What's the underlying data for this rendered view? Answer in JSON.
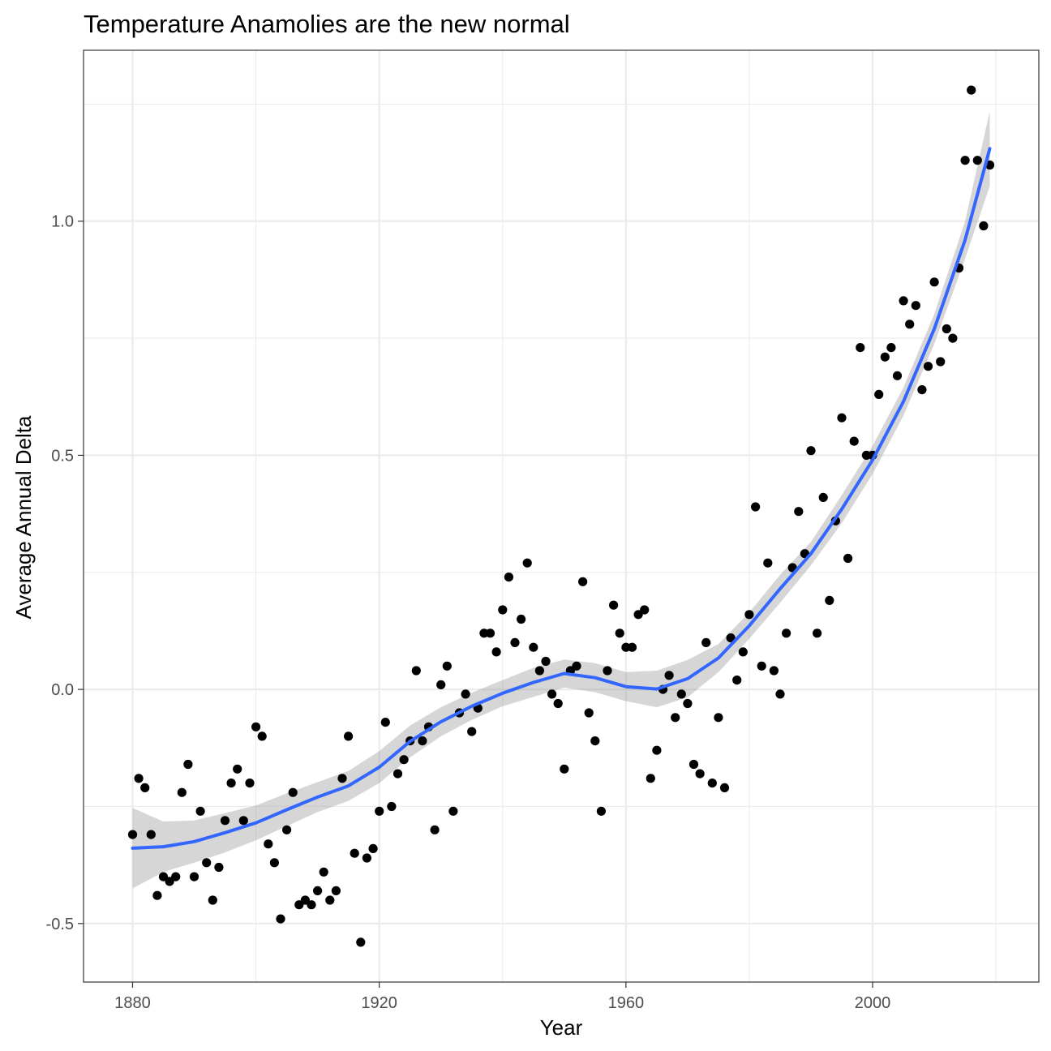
{
  "chart_data": {
    "type": "scatter",
    "title": "Temperature Anamolies are the new normal",
    "xlabel": "Year",
    "ylabel": "Average Annual Delta",
    "xlim": [
      1872.05,
      2026.95
    ],
    "ylim": [
      -0.625,
      1.365
    ],
    "x_ticks": [
      1880,
      1920,
      1960,
      2000
    ],
    "x_tick_labels": [
      "1880",
      "1920",
      "1960",
      "2000"
    ],
    "x_minor_ticks": [
      1900,
      1940,
      1980,
      2020
    ],
    "y_ticks": [
      -0.5,
      0.0,
      0.5,
      1.0
    ],
    "y_tick_labels": [
      "-0.5",
      "0.0",
      "0.5",
      "1.0"
    ],
    "y_minor_ticks": [
      -0.25,
      0.25,
      0.75,
      1.25
    ],
    "grid": true,
    "legend": "none",
    "colors": {
      "points": "#000000",
      "smooth_line": "#3366FF",
      "ribbon": "#999999"
    },
    "x": [
      1880,
      1881,
      1882,
      1883,
      1884,
      1885,
      1886,
      1887,
      1888,
      1889,
      1890,
      1891,
      1892,
      1893,
      1894,
      1895,
      1896,
      1897,
      1898,
      1899,
      1900,
      1901,
      1902,
      1903,
      1904,
      1905,
      1906,
      1907,
      1908,
      1909,
      1910,
      1911,
      1912,
      1913,
      1914,
      1915,
      1916,
      1917,
      1918,
      1919,
      1920,
      1921,
      1922,
      1923,
      1924,
      1925,
      1926,
      1927,
      1928,
      1929,
      1930,
      1931,
      1932,
      1933,
      1934,
      1935,
      1936,
      1937,
      1938,
      1939,
      1940,
      1941,
      1942,
      1943,
      1944,
      1945,
      1946,
      1947,
      1948,
      1949,
      1950,
      1951,
      1952,
      1953,
      1954,
      1955,
      1956,
      1957,
      1958,
      1959,
      1960,
      1961,
      1962,
      1963,
      1964,
      1965,
      1966,
      1967,
      1968,
      1969,
      1970,
      1971,
      1972,
      1973,
      1974,
      1975,
      1976,
      1977,
      1978,
      1979,
      1980,
      1981,
      1982,
      1983,
      1984,
      1985,
      1986,
      1987,
      1988,
      1989,
      1990,
      1991,
      1992,
      1993,
      1994,
      1995,
      1996,
      1997,
      1998,
      1999,
      2000,
      2001,
      2002,
      2003,
      2004,
      2005,
      2006,
      2007,
      2008,
      2009,
      2010,
      2011,
      2012,
      2013,
      2014,
      2015,
      2016,
      2017,
      2018,
      2019
    ],
    "y": [
      -0.31,
      -0.19,
      -0.21,
      -0.31,
      -0.44,
      -0.4,
      -0.41,
      -0.4,
      -0.22,
      -0.16,
      -0.4,
      -0.26,
      -0.37,
      -0.45,
      -0.38,
      -0.28,
      -0.2,
      -0.17,
      -0.28,
      -0.2,
      -0.08,
      -0.1,
      -0.33,
      -0.37,
      -0.49,
      -0.3,
      -0.22,
      -0.46,
      -0.45,
      -0.46,
      -0.43,
      -0.39,
      -0.45,
      -0.43,
      -0.19,
      -0.1,
      -0.35,
      -0.54,
      -0.36,
      -0.34,
      -0.26,
      -0.07,
      -0.25,
      -0.18,
      -0.15,
      -0.11,
      0.04,
      -0.11,
      -0.08,
      -0.3,
      0.01,
      0.05,
      -0.26,
      -0.05,
      -0.01,
      -0.09,
      -0.04,
      0.12,
      0.12,
      0.08,
      0.17,
      0.24,
      0.1,
      0.15,
      0.27,
      0.09,
      0.04,
      0.06,
      -0.01,
      -0.03,
      -0.17,
      0.04,
      0.05,
      0.23,
      -0.05,
      -0.11,
      -0.26,
      0.04,
      0.18,
      0.12,
      0.09,
      0.09,
      0.16,
      0.17,
      -0.19,
      -0.13,
      0.0,
      0.03,
      -0.06,
      -0.01,
      -0.03,
      -0.16,
      -0.18,
      0.1,
      -0.2,
      -0.06,
      -0.21,
      0.11,
      0.02,
      0.08,
      0.16,
      0.39,
      0.05,
      0.27,
      0.04,
      -0.01,
      0.12,
      0.26,
      0.38,
      0.29,
      0.51,
      0.12,
      0.41,
      0.19,
      0.36,
      0.58,
      0.28,
      0.53,
      0.73,
      0.5,
      0.5,
      0.63,
      0.71,
      0.73,
      0.67,
      0.83,
      0.78,
      0.82,
      0.64,
      0.69,
      0.87,
      0.7,
      0.77,
      0.75,
      0.9,
      1.13,
      1.28,
      1.13,
      0.99,
      1.12
    ],
    "series": [
      {
        "type": "smooth",
        "x": [
          1880,
          1885,
          1890,
          1895,
          1900,
          1905,
          1910,
          1915,
          1920,
          1925,
          1930,
          1935,
          1940,
          1945,
          1950,
          1955,
          1960,
          1965,
          1970,
          1975,
          1980,
          1985,
          1990,
          1995,
          2000,
          2005,
          2010,
          2015,
          2019
        ],
        "y": [
          -0.339,
          -0.336,
          -0.325,
          -0.306,
          -0.285,
          -0.257,
          -0.23,
          -0.206,
          -0.166,
          -0.111,
          -0.069,
          -0.036,
          -0.008,
          0.015,
          0.034,
          0.025,
          0.006,
          0.001,
          0.023,
          0.067,
          0.136,
          0.215,
          0.29,
          0.385,
          0.49,
          0.615,
          0.77,
          0.96,
          1.155
        ],
        "ymin": [
          -0.425,
          -0.39,
          -0.37,
          -0.348,
          -0.322,
          -0.292,
          -0.262,
          -0.238,
          -0.2,
          -0.145,
          -0.1,
          -0.065,
          -0.036,
          -0.016,
          0.004,
          -0.006,
          -0.025,
          -0.038,
          -0.017,
          0.037,
          0.108,
          0.185,
          0.265,
          0.355,
          0.46,
          0.585,
          0.738,
          0.92,
          1.075
        ],
        "ymax": [
          -0.253,
          -0.282,
          -0.28,
          -0.264,
          -0.248,
          -0.222,
          -0.198,
          -0.174,
          -0.132,
          -0.077,
          -0.038,
          -0.007,
          0.02,
          0.046,
          0.064,
          0.056,
          0.037,
          0.04,
          0.063,
          0.097,
          0.164,
          0.245,
          0.315,
          0.415,
          0.52,
          0.645,
          0.802,
          1.0,
          1.235
        ]
      }
    ]
  }
}
